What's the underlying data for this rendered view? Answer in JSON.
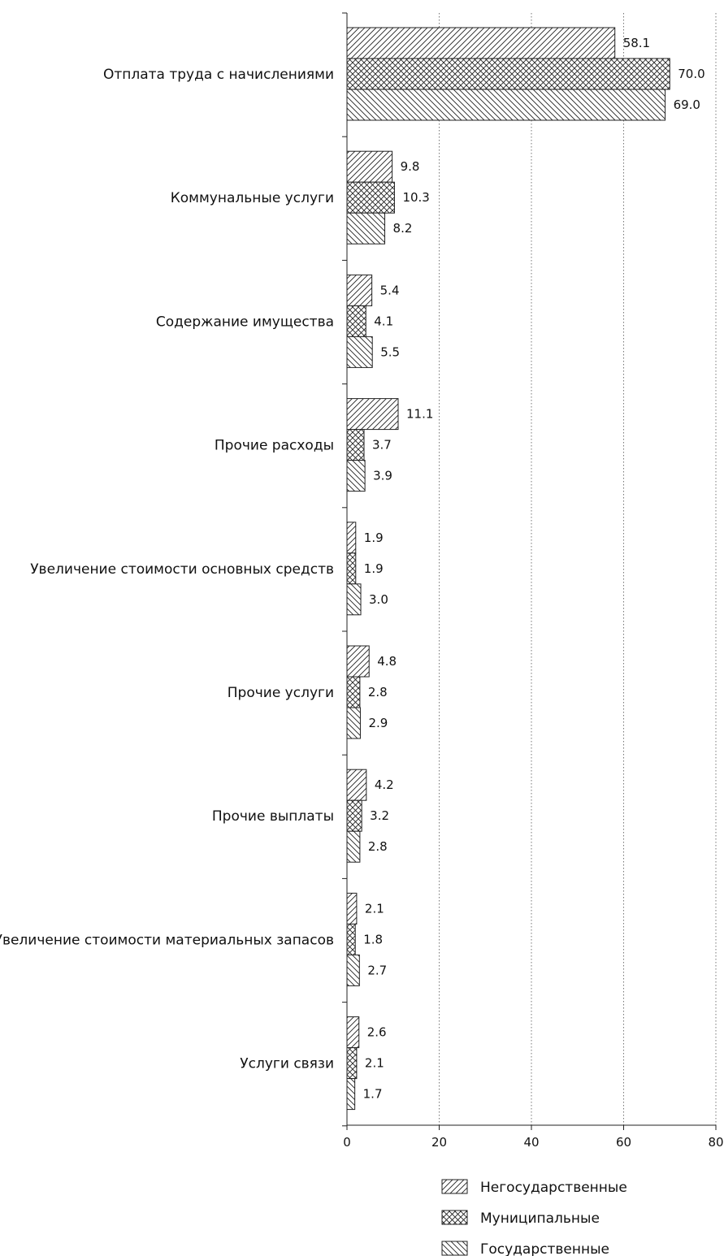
{
  "chart_data": {
    "type": "bar",
    "orientation": "horizontal",
    "categories": [
      "Отплата труда с начислениями",
      "Коммунальные услуги",
      "Содержание имущества",
      "Прочие расходы",
      "Увеличение стоимости основных средств",
      "Прочие услуги",
      "Прочие выплаты",
      "Увеличение стоимости материальных запасов",
      "Услуги связи"
    ],
    "series": [
      {
        "name": "Негосударственные",
        "pattern": "diag-right",
        "values": [
          58.1,
          9.8,
          5.4,
          11.1,
          1.9,
          4.8,
          4.2,
          2.1,
          2.6
        ]
      },
      {
        "name": "Муниципальные",
        "pattern": "crosshatch",
        "values": [
          70.0,
          10.3,
          4.1,
          3.7,
          1.9,
          2.8,
          3.2,
          1.8,
          2.1
        ]
      },
      {
        "name": "Государственные",
        "pattern": "diag-left",
        "values": [
          69.0,
          8.2,
          5.5,
          3.9,
          3.0,
          2.9,
          2.8,
          2.7,
          1.7
        ]
      }
    ],
    "xticks": [
      "0",
      "20",
      "40",
      "60",
      "80"
    ],
    "xlim": [
      0,
      80
    ],
    "grid": "vertical dotted",
    "legend_position": "bottom",
    "colors": {
      "stroke": "#222222",
      "fill": "#ffffff",
      "grid": "#555555"
    }
  }
}
